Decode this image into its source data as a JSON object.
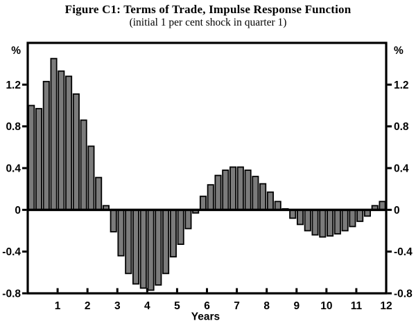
{
  "figure": {
    "title": "Figure C1: Terms of Trade, Impulse Response Function",
    "subtitle": "(initial 1 per cent shock in quarter 1)"
  },
  "chart_data": {
    "type": "bar",
    "title": "Figure C1: Terms of Trade, Impulse Response Function",
    "subtitle": "(initial 1 per cent shock in quarter 1)",
    "xlabel": "Years",
    "y_unit_label": "%",
    "x_unit": "quarters",
    "years_shown": 12,
    "xtick_labels": [
      "1",
      "2",
      "3",
      "4",
      "5",
      "6",
      "7",
      "8",
      "9",
      "10",
      "11",
      "12"
    ],
    "ytick_values": [
      1.2,
      0.8,
      0.4,
      0,
      -0.4,
      -0.8
    ],
    "ytick_labels": [
      "1.2",
      "0.8",
      "0.4",
      "0",
      "-0.4",
      "-0.8"
    ],
    "ylim": [
      -0.8,
      1.6
    ],
    "grid": false,
    "bar_fill_color": "#7b7b7b",
    "bar_edge_color": "#000000",
    "axis_color": "#000000",
    "values": [
      1.0,
      0.97,
      1.23,
      1.45,
      1.33,
      1.28,
      1.11,
      0.86,
      0.61,
      0.31,
      0.04,
      -0.21,
      -0.44,
      -0.61,
      -0.71,
      -0.75,
      -0.77,
      -0.72,
      -0.61,
      -0.45,
      -0.33,
      -0.18,
      -0.03,
      0.13,
      0.24,
      0.33,
      0.38,
      0.41,
      0.41,
      0.38,
      0.32,
      0.25,
      0.17,
      0.08,
      0.01,
      -0.08,
      -0.14,
      -0.2,
      -0.24,
      -0.26,
      -0.25,
      -0.23,
      -0.2,
      -0.16,
      -0.11,
      -0.06,
      0.04,
      0.08
    ]
  }
}
